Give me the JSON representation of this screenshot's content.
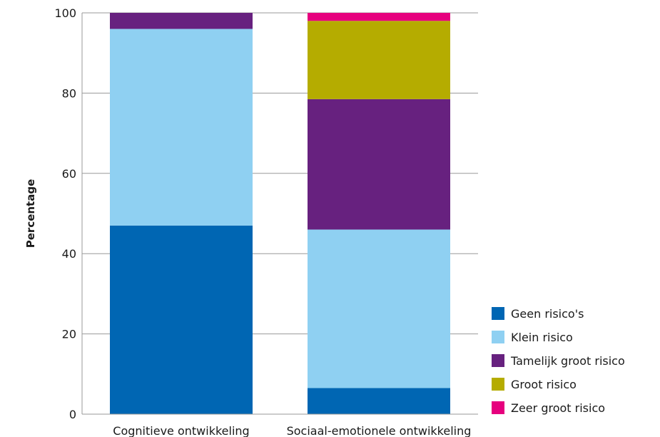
{
  "chart_data": {
    "type": "bar",
    "stacked": true,
    "title": "",
    "xlabel": "",
    "ylabel": "Percentage",
    "ylim": [
      0,
      100
    ],
    "yticks": [
      0,
      20,
      40,
      60,
      80,
      100
    ],
    "grid": true,
    "legend_position": "bottom-right",
    "categories": [
      "Cognitieve ontwikkeling",
      "Sociaal-emotionele ontwikkeling"
    ],
    "series": [
      {
        "name": "Geen risico's",
        "color": "#0066b3",
        "values": [
          47,
          6.5
        ]
      },
      {
        "name": "Klein risico",
        "color": "#8fd0f2",
        "values": [
          49,
          39.5
        ]
      },
      {
        "name": "Tamelijk groot risico",
        "color": "#67217f",
        "values": [
          4,
          32.5
        ]
      },
      {
        "name": "Groot risico",
        "color": "#b5ac00",
        "values": [
          0,
          19.5
        ]
      },
      {
        "name": "Zeer groot risico",
        "color": "#e6007e",
        "values": [
          0,
          2
        ]
      }
    ]
  }
}
